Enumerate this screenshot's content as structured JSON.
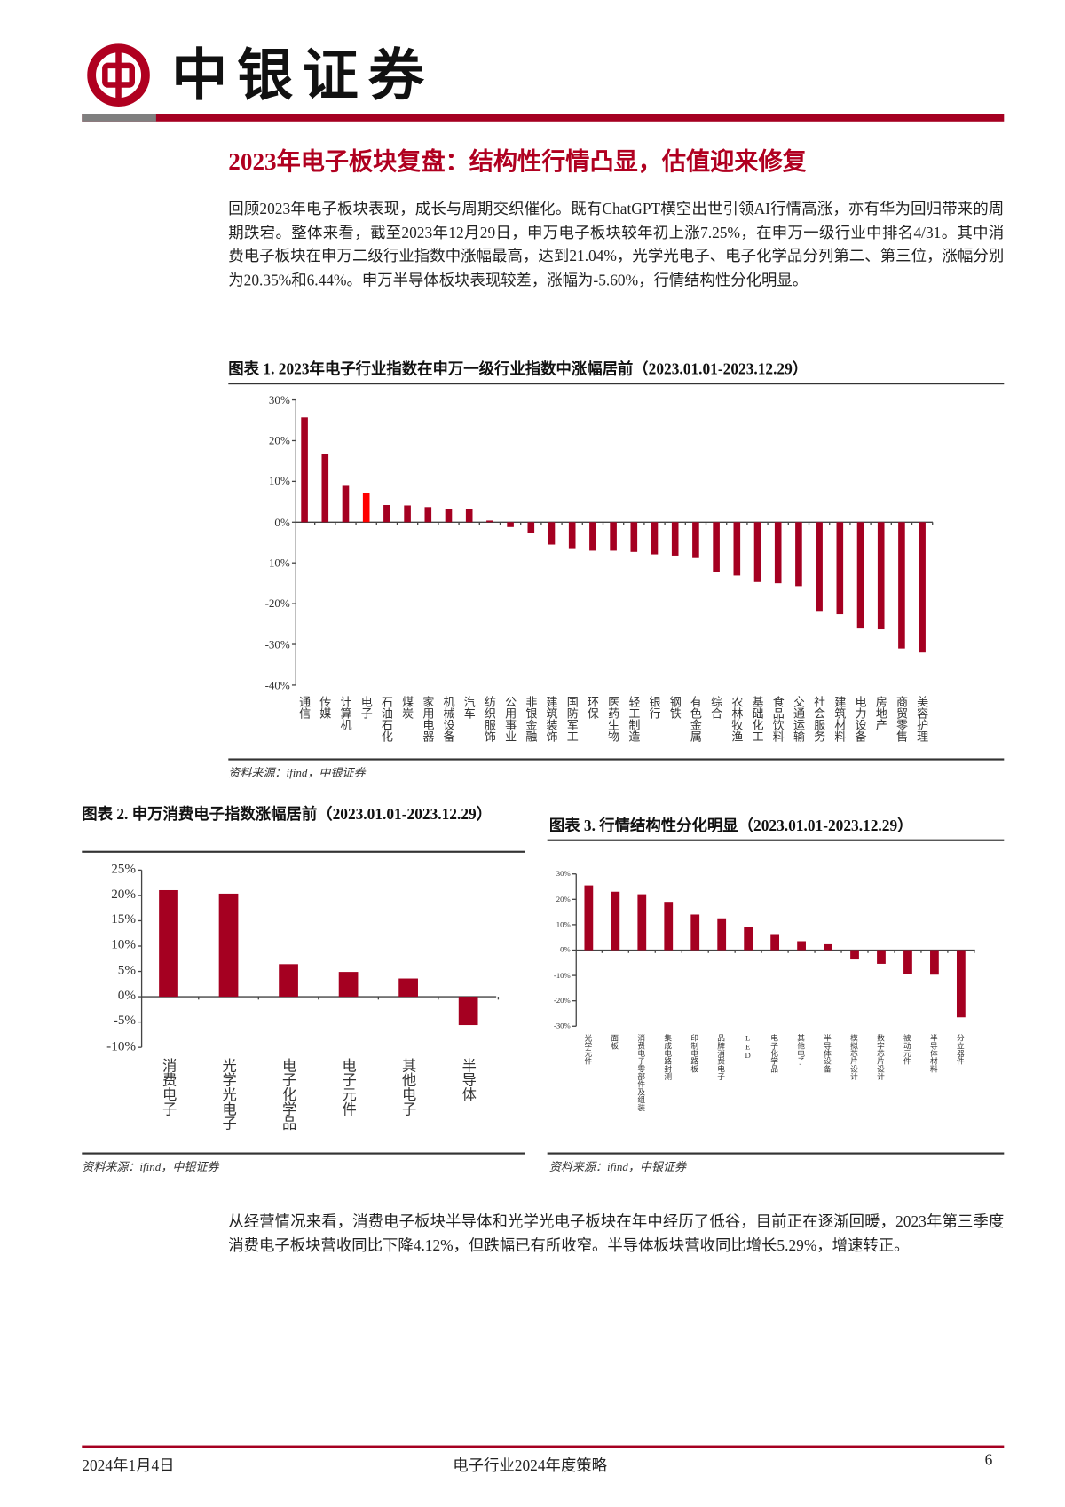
{
  "header": {
    "brand": "中银证券"
  },
  "title": "2023年电子板块复盘：结构性行情凸显，估值迎来修复",
  "paragraph1": "回顾2023年电子板块表现，成长与周期交织催化。既有ChatGPT横空出世引领AI行情高涨，亦有华为回归带来的周期跌宕。整体来看，截至2023年12月29日，申万电子板块较年初上涨7.25%，在申万一级行业中排名4/31。其中消费电子板块在申万二级行业指数中涨幅最高，达到21.04%，光学光电子、电子化学品分列第二、第三位，涨幅分别为20.35%和6.44%。申万半导体板块表现较差，涨幅为-5.60%，行情结构性分化明显。",
  "paragraph2": "从经营情况来看，消费电子板块半导体和光学光电子板块在年中经历了低谷，目前正在逐渐回暖，2023年第三季度消费电子板块营收同比下降4.12%，但跌幅已有所收窄。半导体板块营收同比增长5.29%，增速转正。",
  "colors": {
    "bar": "#A50021",
    "highlight": "#FF0000",
    "accent": "#B00020"
  },
  "chart_data": [
    {
      "type": "bar",
      "title": "图表 1. 2023年电子行业指数在申万一级行业指数中涨幅居前（2023.01.01-2023.12.29）",
      "source": "资料来源：ifind，中银证券",
      "categories": [
        "通信",
        "传媒",
        "计算机",
        "电子",
        "石油石化",
        "煤炭",
        "家用电器",
        "机械设备",
        "汽车",
        "纺织服饰",
        "公用事业",
        "非银金融",
        "建筑装饰",
        "国防军工",
        "环保",
        "医药生物",
        "轻工制造",
        "银行",
        "钢铁",
        "有色金属",
        "综合",
        "农林牧渔",
        "基础化工",
        "食品饮料",
        "交通运输",
        "社会服务",
        "建筑材料",
        "电力设备",
        "房地产",
        "商贸零售",
        "美容护理"
      ],
      "values": [
        25.7,
        16.8,
        8.9,
        7.25,
        4.2,
        4.1,
        3.7,
        3.3,
        3.3,
        0.4,
        -1.2,
        -2.6,
        -5.5,
        -6.6,
        -7.0,
        -7.0,
        -7.3,
        -7.9,
        -8.2,
        -8.8,
        -12.3,
        -13.1,
        -14.7,
        -15.0,
        -15.7,
        -22.0,
        -22.6,
        -26.1,
        -26.3,
        -31.0,
        -32.0
      ],
      "highlight_index": 3,
      "ylim": [
        -40,
        30
      ],
      "yticks": [
        "30%",
        "20%",
        "10%",
        "0%",
        "-10%",
        "-20%",
        "-30%",
        "-40%"
      ],
      "unit": "%"
    },
    {
      "type": "bar",
      "title": "图表 2. 申万消费电子指数涨幅居前（2023.01.01-2023.12.29）",
      "source": "资料来源：ifind，中银证券",
      "categories": [
        "消费电子",
        "光学光电子",
        "电子化学品",
        "电子元件",
        "其他电子",
        "半导体"
      ],
      "values": [
        21.04,
        20.35,
        6.44,
        4.9,
        3.6,
        -5.6
      ],
      "ylim": [
        -10,
        25
      ],
      "yticks": [
        "25%",
        "20%",
        "15%",
        "10%",
        "5%",
        "0%",
        "-5%",
        "-10%"
      ],
      "unit": "%"
    },
    {
      "type": "bar",
      "title": "图表 3. 行情结构性分化明显（2023.01.01-2023.12.29）",
      "source": "资料来源：ifind，中银证券",
      "categories": [
        "光学元件",
        "面板",
        "消费电子零部件及组装",
        "集成电路封测",
        "印制电路板",
        "品牌消费电子",
        "LED",
        "电子化学品",
        "其他电子",
        "半导体设备",
        "模拟芯片设计",
        "数字芯片设计",
        "被动元件",
        "半导体材料",
        "分立器件"
      ],
      "values": [
        25.5,
        23.0,
        22.0,
        19.0,
        14.0,
        12.5,
        9.0,
        6.3,
        3.5,
        2.3,
        -3.7,
        -5.4,
        -9.4,
        -9.7,
        -26.5
      ],
      "ylim": [
        -30,
        30
      ],
      "yticks": [
        "30%",
        "20%",
        "10%",
        "0%",
        "-10%",
        "-20%",
        "-30%"
      ],
      "unit": "%"
    }
  ],
  "footer": {
    "date": "2024年1月4日",
    "doc": "电子行业2024年度策略",
    "page": "6"
  }
}
